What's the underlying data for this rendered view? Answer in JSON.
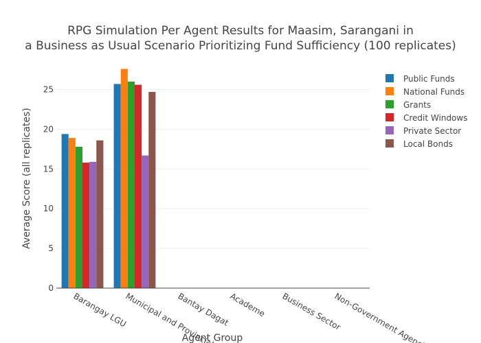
{
  "chart_data": {
    "type": "bar",
    "title": "RPG Simulation Per Agent Results for Maasim, Sarangani in",
    "title_line2": "a Business as Usual Scenario Prioritizing Fund Sufficiency (100 replicates)",
    "xlabel": "Agent Group",
    "ylabel": "Average Score (all replicates)",
    "ylim": [
      0,
      28.5
    ],
    "yticks": [
      0,
      5,
      10,
      15,
      20,
      25
    ],
    "grid": true,
    "legend_position": "top-right",
    "categories": [
      "Barangay LGU",
      "Municipal and Provincial",
      "Bantay Dagat",
      "Academe",
      "Business Sector",
      "Non-Government Agencies"
    ],
    "series": [
      {
        "name": "Public Funds",
        "color": "#1f77b4",
        "values": [
          19.4,
          25.7,
          0,
          0,
          0,
          0
        ]
      },
      {
        "name": "National Funds",
        "color": "#ff7f0e",
        "values": [
          18.9,
          27.6,
          0,
          0,
          0,
          0
        ]
      },
      {
        "name": "Grants",
        "color": "#2ca02c",
        "values": [
          17.8,
          26.0,
          0,
          0,
          0,
          0
        ]
      },
      {
        "name": "Credit Windows",
        "color": "#d62728",
        "values": [
          15.8,
          25.6,
          0,
          0,
          0,
          0
        ]
      },
      {
        "name": "Private Sector",
        "color": "#9467bd",
        "values": [
          15.9,
          16.7,
          0,
          0,
          0,
          0
        ]
      },
      {
        "name": "Local Bonds",
        "color": "#8c564b",
        "values": [
          18.6,
          24.7,
          0,
          0,
          0,
          0
        ]
      }
    ]
  }
}
